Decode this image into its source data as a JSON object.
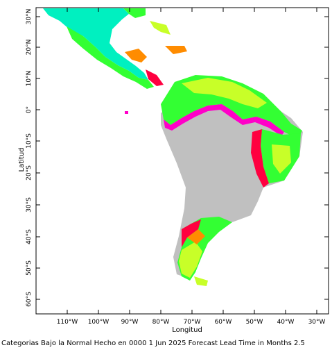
{
  "map": {
    "xlabel": "Longitud",
    "ylabel": "Latitud",
    "lon_ticks": [
      "110°W",
      "100°W",
      "90°W",
      "80°W",
      "70°W",
      "60°W",
      "50°W",
      "40°W",
      "30°W"
    ],
    "lat_ticks": [
      "30°N",
      "20°N",
      "10°N",
      "0°",
      "10°S",
      "20°S",
      "30°S",
      "40°S",
      "50°S",
      "60°S"
    ],
    "caption": "Categorias Bajo la Normal Hecho en 0000 1 Jun 2025 Forecast Lead Time in Months 2.5",
    "colors": {
      "land_no_data": "#c0c0c0",
      "low_prob": "#00f0c0",
      "green": "#33ff33",
      "yellow_green": "#c8ff28",
      "yellow": "#ffff00",
      "orange": "#ff8c00",
      "red": "#ff0040",
      "magenta": "#ff00c8"
    }
  }
}
